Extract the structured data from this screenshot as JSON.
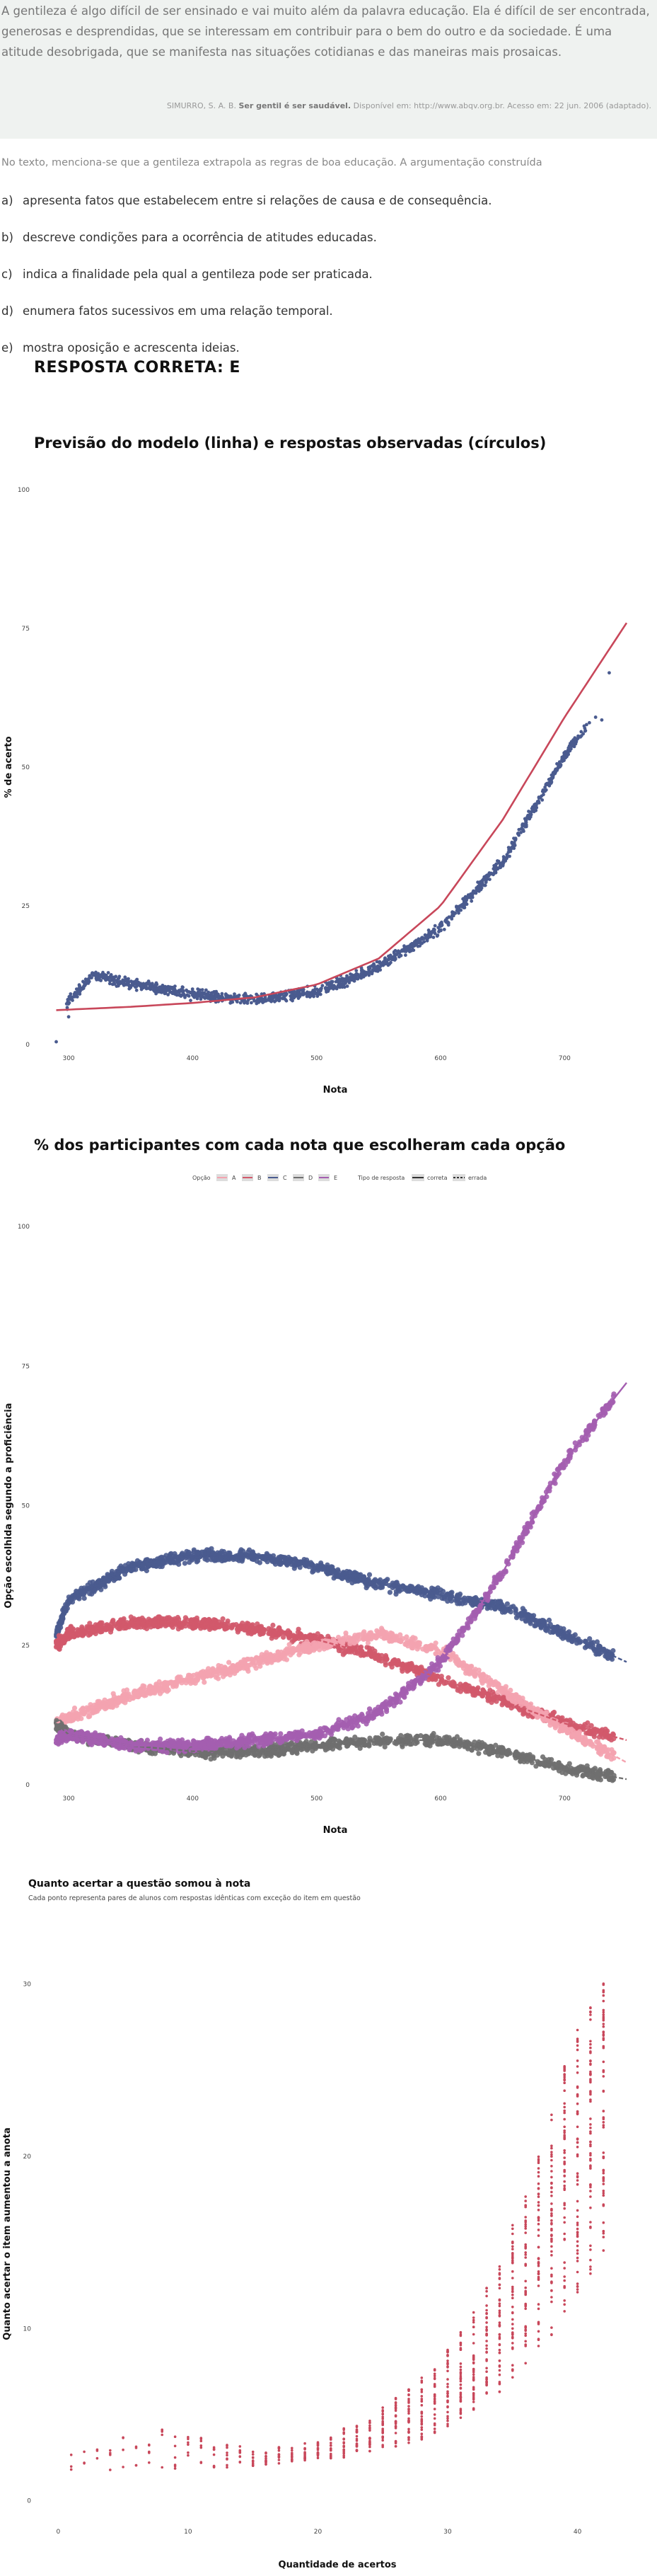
{
  "quote": {
    "text": "A gentileza é algo difícil de ser ensinado e vai muito além da palavra educação. Ela é difícil de ser encontrada, generosas e desprendidas, que se interessam em contribuir para o bem do outro e da sociedade. É uma atitude desobrigada, que se manifesta nas situações cotidianas e das maneiras mais prosaicas.",
    "source_prefix": "SIMURRO, S. A. B.",
    "source_title": "Ser gentil é ser saudável.",
    "source_rest": "Disponível em: http://www.abqv.org.br. Acesso em: 22 jun. 2006 (adaptado)."
  },
  "question": {
    "stem": "No texto, menciona-se que a gentileza extrapola as regras de boa educação. A argumentação construída",
    "options": [
      {
        "letter": "a)",
        "text": "apresenta fatos que estabelecem entre si relações de causa e de consequência."
      },
      {
        "letter": "b)",
        "text": "descreve condições para a ocorrência de atitudes educadas."
      },
      {
        "letter": "c)",
        "text": "indica a finalidade pela qual a gentileza pode ser praticada."
      },
      {
        "letter": "d)",
        "text": "enumera fatos sucessivos em uma relação temporal."
      },
      {
        "letter": "e)",
        "text": "mostra oposição e acrescenta ideias."
      }
    ],
    "answer": "RESPOSTA CORRETA: E"
  },
  "colors": {
    "A": "#f4a3b0",
    "B": "#d2596b",
    "C": "#4a5b8f",
    "D": "#6f6f6f",
    "E": "#a45eb0",
    "model_line": "#c8475a",
    "points_1": "#4a5b8f",
    "points_3": "#c8475a"
  },
  "chart_data": [
    {
      "type": "scatter",
      "title": "Previsão do modelo (linha) e respostas observadas (círculos)",
      "xlabel": "Nota",
      "ylabel": "% de acerto",
      "xticks": [
        300,
        400,
        500,
        600,
        700
      ],
      "yticks": [
        0,
        25,
        50,
        75,
        100
      ],
      "xlim": [
        280,
        750
      ],
      "ylim": [
        0,
        100
      ],
      "model_line": {
        "x": [
          290,
          350,
          400,
          450,
          500,
          550,
          600,
          650,
          700,
          750
        ],
        "y": [
          6.2,
          6.8,
          7.5,
          8.5,
          10.8,
          15.5,
          25.0,
          40.5,
          59.0,
          76.0
        ]
      },
      "observed": {
        "x": [
          290,
          300,
          320,
          350,
          400,
          450,
          500,
          550,
          600,
          650,
          700,
          720,
          740
        ],
        "y": [
          0.5,
          8,
          12.5,
          11,
          9,
          8,
          9.5,
          14,
          21,
          33,
          52,
          58,
          67
        ]
      }
    },
    {
      "type": "scatter",
      "title": "% dos participantes com cada nota que escolheram cada opção",
      "xlabel": "Nota",
      "ylabel": "Opção escolhida segundo a proficiência",
      "legend_title": "Opção",
      "legend_type_title": "Tipo de resposta",
      "legend_types": [
        "correta",
        "errada"
      ],
      "xticks": [
        300,
        400,
        500,
        600,
        700
      ],
      "yticks": [
        0,
        25,
        50,
        75,
        100
      ],
      "xlim": [
        280,
        750
      ],
      "ylim": [
        0,
        100
      ],
      "x": [
        290,
        300,
        350,
        400,
        450,
        500,
        550,
        600,
        650,
        700,
        750
      ],
      "series": [
        {
          "name": "A",
          "correct": false,
          "values": [
            11,
            12,
            16,
            19,
            22,
            25,
            27,
            24,
            17,
            10,
            4
          ]
        },
        {
          "name": "B",
          "correct": false,
          "values": [
            25,
            27,
            29,
            29,
            28,
            26,
            23,
            19,
            15,
            11,
            8
          ]
        },
        {
          "name": "C",
          "correct": false,
          "values": [
            27,
            33,
            39,
            41,
            41,
            39,
            36,
            34,
            32,
            27,
            22
          ]
        },
        {
          "name": "D",
          "correct": false,
          "values": [
            11,
            9,
            7,
            6,
            6,
            7,
            8,
            8,
            6,
            3,
            1
          ]
        },
        {
          "name": "E",
          "correct": true,
          "values": [
            8,
            9,
            7,
            7,
            8,
            9,
            13,
            22,
            38,
            58,
            72
          ]
        }
      ]
    },
    {
      "type": "scatter",
      "title": "Quanto acertar a questão somou à nota",
      "subtitle": "Cada ponto representa pares de alunos com respostas idênticas com exceção do item em questão",
      "xlabel": "Quantidade de acertos",
      "ylabel": "Quanto acertar o item aumentou a anota",
      "xticks": [
        0,
        10,
        20,
        30,
        40
      ],
      "yticks": [
        0,
        10,
        20,
        30
      ],
      "xlim": [
        -1,
        44
      ],
      "ylim": [
        -1,
        32
      ],
      "x": [
        1,
        3,
        5,
        8,
        10,
        12,
        15,
        18,
        20,
        22,
        24,
        26,
        28,
        30,
        32,
        34,
        36,
        38,
        40,
        42
      ],
      "y_min": [
        1.5,
        1.8,
        1.7,
        1.8,
        1.9,
        1.9,
        2.0,
        2.2,
        2.4,
        2.5,
        2.8,
        3.0,
        3.5,
        4.2,
        5.2,
        6.3,
        7.8,
        9.5,
        11.8,
        14.5
      ],
      "y_max": [
        2.8,
        3.2,
        3.8,
        4.2,
        4.0,
        3.5,
        3.0,
        3.2,
        3.5,
        4.2,
        5.0,
        6.0,
        7.2,
        8.8,
        11.0,
        14.0,
        18.0,
        23.0,
        27.5,
        30.2
      ]
    }
  ]
}
